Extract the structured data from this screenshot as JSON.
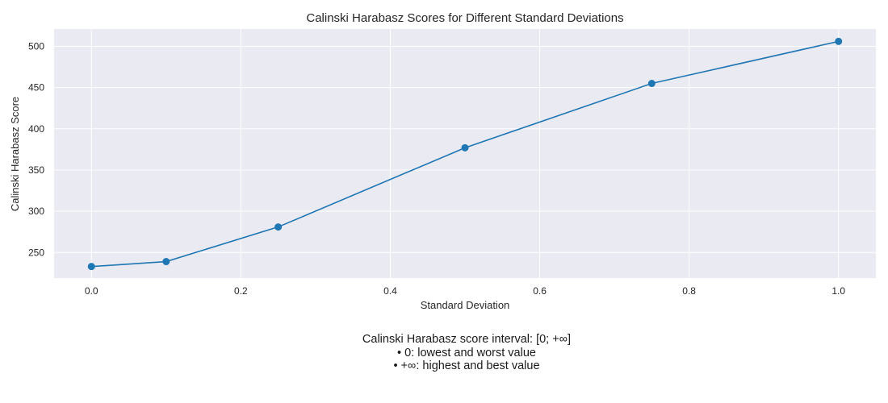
{
  "chart_data": {
    "type": "line",
    "title": "Calinski Harabasz Scores for Different Standard Deviations",
    "xlabel": "Standard Deviation",
    "ylabel": "Calinski Harabasz Score",
    "x": [
      0.0,
      0.1,
      0.25,
      0.5,
      0.75,
      1.0
    ],
    "y": [
      233,
      239,
      281,
      377,
      455,
      506
    ],
    "xlim": [
      -0.05,
      1.05
    ],
    "ylim": [
      219,
      521
    ],
    "xticks": [
      0.0,
      0.2,
      0.4,
      0.6,
      0.8,
      1.0
    ],
    "xtick_labels": [
      "0.0",
      "0.2",
      "0.4",
      "0.6",
      "0.8",
      "1.0"
    ],
    "yticks": [
      250,
      300,
      350,
      400,
      450,
      500
    ],
    "ytick_labels": [
      "250",
      "300",
      "350",
      "400",
      "450",
      "500"
    ],
    "grid": true,
    "marker": "circle",
    "line_color": "#1f77b4",
    "background_color": "#eaeaf2",
    "grid_color": "#ffffff"
  },
  "caption": {
    "line1": "Calinski Harabasz score interval: [0; +∞]",
    "line2": "• 0: lowest and worst value",
    "line3": "• +∞: highest and best value"
  }
}
